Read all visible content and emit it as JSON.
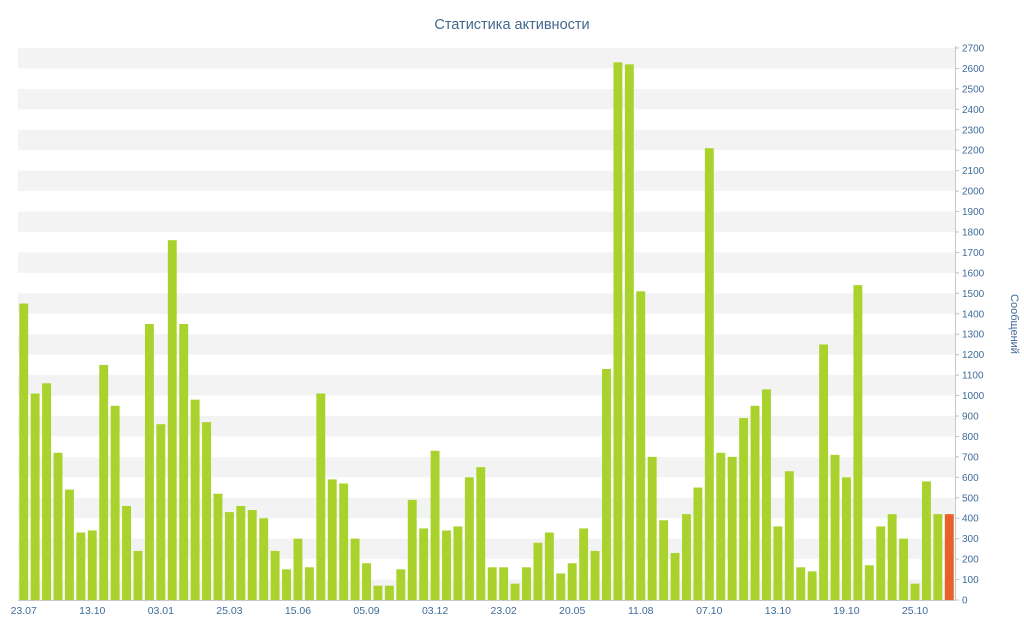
{
  "chart_data": {
    "type": "bar",
    "title": "Статистика активности",
    "ylabel": "Сообщений",
    "xlabel": "",
    "ylim": [
      0,
      2700
    ],
    "y_tick_step": 100,
    "x_tick_labels": [
      "23.07",
      "13.10",
      "03.01",
      "25.03",
      "15.06",
      "05.09",
      "03.12",
      "23.02",
      "20.05",
      "11.08",
      "07.10",
      "13.10",
      "19.10",
      "25.10"
    ],
    "x_tick_every": 6,
    "values": [
      1450,
      1010,
      1060,
      720,
      540,
      330,
      340,
      1150,
      950,
      460,
      240,
      1350,
      860,
      1760,
      1350,
      980,
      870,
      520,
      430,
      460,
      440,
      400,
      240,
      150,
      300,
      160,
      1010,
      590,
      570,
      300,
      180,
      70,
      70,
      150,
      490,
      350,
      730,
      340,
      360,
      600,
      650,
      160,
      160,
      80,
      160,
      280,
      330,
      130,
      180,
      350,
      240,
      1130,
      2630,
      2620,
      1510,
      700,
      390,
      230,
      420,
      550,
      2210,
      720,
      700,
      890,
      950,
      1030,
      360,
      630,
      160,
      140,
      1250,
      710,
      600,
      1540,
      170,
      360,
      420,
      300,
      80,
      580,
      420,
      420
    ],
    "grid": "striped-horizontal-bands",
    "legend": "none",
    "colors": {
      "bar": "#a9d32c",
      "bar_last": "#e8612b",
      "band": "#f3f3f3",
      "axis_line": "#c8c8c8",
      "tick_line": "#b8c2cc",
      "title_text": "#44688c",
      "axis_text": "#3f6b9a"
    }
  }
}
